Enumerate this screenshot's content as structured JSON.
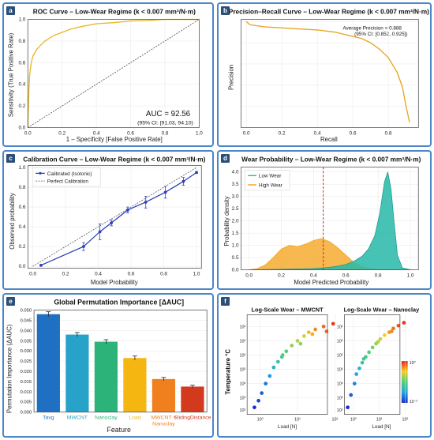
{
  "panels": {
    "a": {
      "label": "a",
      "title": "ROC Curve – Low-Wear Regime (k < 0.007 mm³/N·m)",
      "xlabel": "1 – Specificity [False Positive Rate]",
      "ylabel": "Sensitivity (True Positive Rate)",
      "auc_text": "AUC = 92.56",
      "ci_text": "(95% CI: [91.03, 94.10)"
    },
    "b": {
      "label": "b",
      "title": "Precision–Recall Curve – Low-Wear Regime (k < 0.007 mm³/N·m)",
      "xlabel": "Recall",
      "ylabel": "Precision",
      "ap_text": "Average Precision = 0.888",
      "ci_text": "(95% CI: [0.852, 0.925])"
    },
    "c": {
      "label": "c",
      "title": "Calibration Curve – Low-Wear Regime (k < 0.007 mm³/N·m)",
      "xlabel": "Model Probability",
      "ylabel": "Observed probability",
      "legend": [
        "Calibrated (Isotonic)",
        "Perfect Calibration"
      ]
    },
    "d": {
      "label": "d",
      "title": "Wear Probability – Low-Wear Regime (k < 0.007 mm³/N·m)",
      "xlabel": "Model Predicted Probability",
      "ylabel": "Probability density",
      "legend": [
        "Low Wear",
        "High Wear"
      ]
    },
    "e": {
      "label": "e",
      "title": "Global Permutation Importance [ΔAUC]",
      "xlabel": "Feature",
      "ylabel": "Permutation Importance (ΔAUC)"
    },
    "f": {
      "label": "f",
      "ylabel": "Temperature °C",
      "sub1_title": "Log-Scale Wear – MWCNT",
      "sub2_title": "Log-Scale Wear – Nanoclay",
      "xlabel": "Load [N]",
      "cbar_top": "10⁰",
      "cbar_bottom": "10⁻²"
    }
  },
  "colors": {
    "frame": "#4a86c8",
    "roc": "#e8b923",
    "pr": "#e8a623",
    "calib": "#2c3fb8",
    "low_wear": "#26b8a8",
    "high_wear": "#f5a623",
    "threshold": "#d02020"
  },
  "chart_data": [
    {
      "panel": "a",
      "type": "line",
      "title": "ROC Curve – Low-Wear Regime (k < 0.007 mm³/N·m)",
      "xlabel": "1 – Specificity [False Positive Rate]",
      "ylabel": "Sensitivity (True Positive Rate)",
      "xlim": [
        0,
        1
      ],
      "ylim": [
        0,
        1
      ],
      "x_ticks": [
        "0.0",
        "0.2",
        "0.4",
        "0.6",
        "0.8",
        "1.0"
      ],
      "y_ticks": [
        "0.0",
        "0.2",
        "0.4",
        "0.6",
        "0.8",
        "1.0"
      ],
      "series": [
        {
          "x": [
            0,
            0.005,
            0.01,
            0.02,
            0.03,
            0.05,
            0.08,
            0.1,
            0.15,
            0.2,
            0.25,
            0.3,
            0.4,
            0.5,
            0.6,
            0.7,
            0.8,
            1.0
          ],
          "y": [
            0,
            0.3,
            0.48,
            0.6,
            0.66,
            0.72,
            0.77,
            0.8,
            0.85,
            0.88,
            0.91,
            0.93,
            0.96,
            0.97,
            0.985,
            0.99,
            1.0,
            1.0
          ]
        },
        {
          "x": [
            0,
            1
          ],
          "y": [
            0,
            1
          ]
        }
      ]
    },
    {
      "panel": "b",
      "type": "line",
      "title": "Precision–Recall Curve – Low-Wear Regime (k < 0.007 mm³/N·m)",
      "xlabel": "Recall",
      "ylabel": "Precision",
      "xlim": [
        0,
        1
      ],
      "ylim": [
        0,
        1
      ],
      "x_ticks": [
        "0.0",
        "0.2",
        "0.4",
        "0.6",
        "0.8"
      ],
      "series": [
        {
          "x": [
            0,
            0.02,
            0.1,
            0.2,
            0.3,
            0.4,
            0.5,
            0.55,
            0.6,
            0.65,
            0.7,
            0.75,
            0.8,
            0.85,
            0.88,
            0.9,
            0.92
          ],
          "y": [
            1.0,
            0.97,
            0.95,
            0.94,
            0.93,
            0.92,
            0.9,
            0.88,
            0.86,
            0.84,
            0.8,
            0.74,
            0.66,
            0.52,
            0.38,
            0.2,
            0.05
          ]
        }
      ]
    },
    {
      "panel": "c",
      "type": "line",
      "title": "Calibration Curve – Low-Wear Regime (k < 0.007 mm³/N·m)",
      "xlabel": "Model Probability",
      "ylabel": "Observed probability",
      "xlim": [
        0,
        1
      ],
      "ylim": [
        0,
        1
      ],
      "x_ticks": [
        "0.0",
        "0.2",
        "0.4",
        "0.6",
        "0.8",
        "1.0"
      ],
      "y_ticks": [
        "0.0",
        "0.2",
        "0.4",
        "0.6",
        "0.8",
        "1.0"
      ],
      "series": [
        {
          "name": "Calibrated (Isotonic)",
          "x": [
            0.05,
            0.31,
            0.41,
            0.48,
            0.58,
            0.69,
            0.81,
            0.92,
            1.0
          ],
          "y": [
            0.01,
            0.2,
            0.35,
            0.44,
            0.57,
            0.65,
            0.75,
            0.86,
            0.95
          ],
          "err": [
            0.01,
            0.04,
            0.08,
            0.03,
            0.03,
            0.06,
            0.06,
            0.04,
            0.01
          ]
        },
        {
          "name": "Perfect Calibration",
          "x": [
            0,
            1
          ],
          "y": [
            0,
            1
          ]
        }
      ]
    },
    {
      "panel": "d",
      "type": "area",
      "title": "Wear Probability – Low-Wear Regime (k < 0.007 mm³/N·m)",
      "xlabel": "Model Predicted Probability",
      "ylabel": "Probability density",
      "xlim": [
        -0.05,
        1.05
      ],
      "ylim": [
        0,
        4.2
      ],
      "x_ticks": [
        "0.0",
        "0.2",
        "0.4",
        "0.6",
        "0.8",
        "1.0"
      ],
      "y_ticks": [
        "0.0",
        "0.5",
        "1.0",
        "1.5",
        "2.0",
        "2.5",
        "3.0",
        "3.5",
        "4.0"
      ],
      "threshold": 0.46,
      "series": [
        {
          "name": "Low Wear",
          "x": [
            0.0,
            0.2,
            0.4,
            0.5,
            0.55,
            0.6,
            0.65,
            0.7,
            0.74,
            0.78,
            0.81,
            0.84,
            0.86,
            0.88,
            0.9,
            0.92,
            0.95,
            1.0
          ],
          "y": [
            0,
            0.02,
            0.05,
            0.1,
            0.15,
            0.22,
            0.35,
            0.55,
            0.85,
            1.4,
            2.3,
            3.6,
            4.0,
            3.3,
            1.9,
            0.6,
            0.08,
            0
          ]
        },
        {
          "name": "High Wear",
          "x": [
            0.0,
            0.05,
            0.1,
            0.15,
            0.2,
            0.25,
            0.3,
            0.35,
            0.4,
            0.45,
            0.5,
            0.55,
            0.6,
            0.65,
            0.7,
            0.75,
            0.8
          ],
          "y": [
            0,
            0.05,
            0.2,
            0.5,
            0.85,
            1.0,
            0.95,
            1.05,
            1.2,
            1.28,
            1.15,
            0.9,
            0.6,
            0.3,
            0.12,
            0.05,
            0.01
          ]
        }
      ]
    },
    {
      "panel": "e",
      "type": "bar",
      "title": "Global Permutation Importance [ΔAUC]",
      "xlabel": "Feature",
      "ylabel": "Permutation Importance (ΔAUC)",
      "ylim": [
        0,
        0.05
      ],
      "y_ticks": [
        "0.000",
        "0.005",
        "0.010",
        "0.015",
        "0.020",
        "0.025",
        "0.030",
        "0.035",
        "0.040",
        "0.045",
        "0.050"
      ],
      "categories": [
        "Tavg",
        "MWCNT",
        "Nanoclay",
        "Load",
        "MWCNT ×\nNanoclay",
        "SlidingDistance"
      ],
      "values": [
        0.048,
        0.038,
        0.0345,
        0.0265,
        0.0162,
        0.0125
      ],
      "errors": [
        0.0012,
        0.001,
        0.001,
        0.001,
        0.0008,
        0.0007
      ],
      "bar_colors": [
        "#1f6fc2",
        "#27a3c9",
        "#2cb37a",
        "#f6b612",
        "#f07f1d",
        "#d2391d"
      ]
    },
    {
      "panel": "f",
      "type": "scatter",
      "ylabel": "Temperature °C",
      "xlabel": "Load [N]",
      "x_ticks": [
        "10⁰",
        "10¹",
        "10²"
      ],
      "y_ticks": [
        "10²",
        "10²",
        "10²",
        "10³",
        "10³",
        "10³",
        "10²"
      ],
      "subplots": [
        {
          "title": "Log-Scale Wear – MWCNT",
          "points": [
            {
              "x": 0.7,
              "y": 0.05,
              "c": 0.0
            },
            {
              "x": 0.9,
              "y": 0.12,
              "c": 0.05
            },
            {
              "x": 1.1,
              "y": 0.2,
              "c": 0.1
            },
            {
              "x": 1.4,
              "y": 0.3,
              "c": 0.15
            },
            {
              "x": 1.8,
              "y": 0.38,
              "c": 0.22
            },
            {
              "x": 2.3,
              "y": 0.47,
              "c": 0.3
            },
            {
              "x": 3.0,
              "y": 0.53,
              "c": 0.4
            },
            {
              "x": 3.8,
              "y": 0.58,
              "c": 0.45
            },
            {
              "x": 5.0,
              "y": 0.64,
              "c": 0.5
            },
            {
              "x": 7.0,
              "y": 0.7,
              "c": 0.6
            },
            {
              "x": 10,
              "y": 0.75,
              "c": 0.65
            },
            {
              "x": 15,
              "y": 0.8,
              "c": 0.7
            },
            {
              "x": 20,
              "y": 0.84,
              "c": 0.78
            },
            {
              "x": 30,
              "y": 0.87,
              "c": 0.85
            },
            {
              "x": 50,
              "y": 0.9,
              "c": 0.9
            },
            {
              "x": 90,
              "y": 0.93,
              "c": 0.97
            },
            {
              "x": 4.0,
              "y": 0.6,
              "c": 0.5
            },
            {
              "x": 12,
              "y": 0.72,
              "c": 0.6
            },
            {
              "x": 25,
              "y": 0.82,
              "c": 0.8
            },
            {
              "x": 60,
              "y": 0.85,
              "c": 0.9
            }
          ]
        },
        {
          "title": "Log-Scale Wear – Nanoclay",
          "points": [
            {
              "x": 0.6,
              "y": 0.05,
              "c": 0.0
            },
            {
              "x": 0.8,
              "y": 0.18,
              "c": 0.1
            },
            {
              "x": 1.1,
              "y": 0.3,
              "c": 0.18
            },
            {
              "x": 1.3,
              "y": 0.4,
              "c": 0.25
            },
            {
              "x": 1.7,
              "y": 0.46,
              "c": 0.32
            },
            {
              "x": 2.2,
              "y": 0.52,
              "c": 0.4
            },
            {
              "x": 3.0,
              "y": 0.58,
              "c": 0.45
            },
            {
              "x": 4.0,
              "y": 0.63,
              "c": 0.5
            },
            {
              "x": 5.5,
              "y": 0.68,
              "c": 0.55
            },
            {
              "x": 7.5,
              "y": 0.72,
              "c": 0.6
            },
            {
              "x": 11,
              "y": 0.77,
              "c": 0.7
            },
            {
              "x": 16,
              "y": 0.81,
              "c": 0.75
            },
            {
              "x": 24,
              "y": 0.84,
              "c": 0.82
            },
            {
              "x": 35,
              "y": 0.88,
              "c": 0.88
            },
            {
              "x": 55,
              "y": 0.91,
              "c": 0.92
            },
            {
              "x": 90,
              "y": 0.94,
              "c": 0.97
            },
            {
              "x": 2.5,
              "y": 0.56,
              "c": 0.45
            },
            {
              "x": 9,
              "y": 0.74,
              "c": 0.65
            },
            {
              "x": 30,
              "y": 0.85,
              "c": 0.85
            }
          ]
        }
      ]
    }
  ]
}
